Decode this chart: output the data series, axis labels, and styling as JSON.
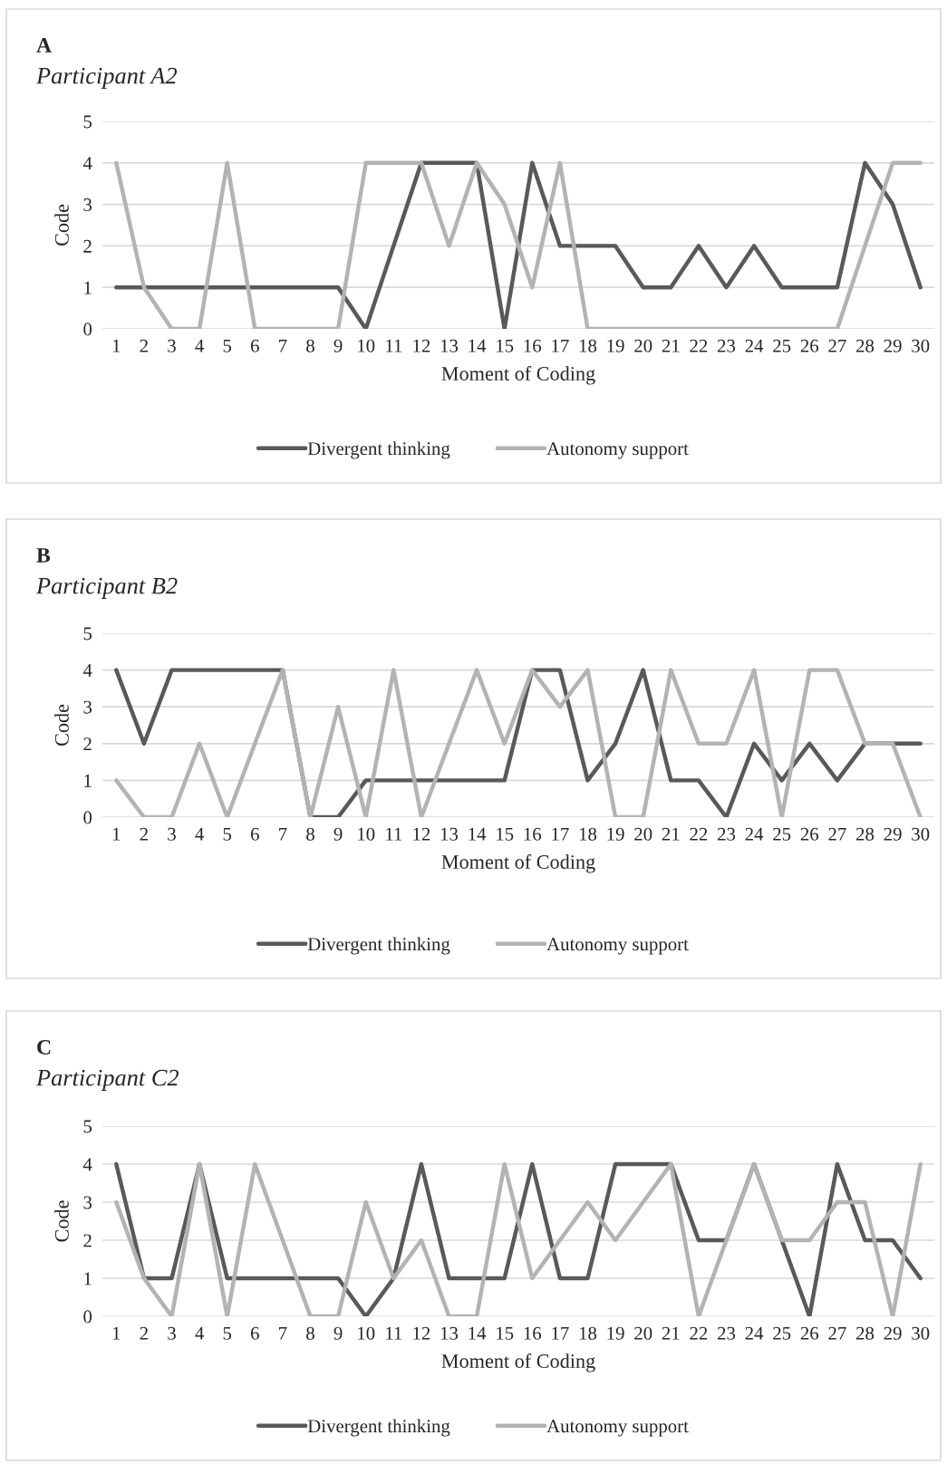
{
  "chart_data": [
    {
      "type": "line",
      "title": "A",
      "subtitle": "Participant A2",
      "xlabel": "Moment of Coding",
      "ylabel": "Code",
      "categories": [
        "1",
        "2",
        "3",
        "4",
        "5",
        "6",
        "7",
        "8",
        "9",
        "10",
        "11",
        "12",
        "13",
        "14",
        "15",
        "16",
        "17",
        "18",
        "19",
        "20",
        "21",
        "22",
        "23",
        "24",
        "25",
        "26",
        "27",
        "28",
        "29",
        "30"
      ],
      "ylim": [
        0,
        5
      ],
      "yticks": [
        0,
        1,
        2,
        3,
        4,
        5
      ],
      "grid": "y",
      "legend": "bottom",
      "marker": "none",
      "line_style": "solid",
      "series": [
        {
          "name": "Divergent thinking",
          "color": "#595959",
          "values": [
            1,
            1,
            1,
            1,
            1,
            1,
            1,
            1,
            1,
            0,
            2,
            4,
            4,
            4,
            0,
            4,
            2,
            2,
            2,
            1,
            1,
            2,
            1,
            2,
            1,
            1,
            1,
            4,
            3,
            1
          ]
        },
        {
          "name": "Autonomy support",
          "color": "#b3b3b3",
          "values": [
            4,
            1,
            0,
            0,
            4,
            0,
            0,
            0,
            0,
            4,
            4,
            4,
            2,
            4,
            3,
            1,
            4,
            0,
            0,
            0,
            0,
            0,
            0,
            0,
            0,
            0,
            0,
            2,
            4,
            4
          ]
        }
      ]
    },
    {
      "type": "line",
      "title": "B",
      "subtitle": "Participant B2",
      "xlabel": "Moment of Coding",
      "ylabel": "Code",
      "categories": [
        "1",
        "2",
        "3",
        "4",
        "5",
        "6",
        "7",
        "8",
        "9",
        "10",
        "11",
        "12",
        "13",
        "14",
        "15",
        "16",
        "17",
        "18",
        "19",
        "20",
        "21",
        "22",
        "23",
        "24",
        "25",
        "26",
        "27",
        "28",
        "29",
        "30"
      ],
      "ylim": [
        0,
        5
      ],
      "yticks": [
        0,
        1,
        2,
        3,
        4,
        5
      ],
      "grid": "y",
      "legend": "bottom",
      "marker": "none",
      "line_style": "solid",
      "series": [
        {
          "name": "Divergent thinking",
          "color": "#595959",
          "values": [
            4,
            2,
            4,
            4,
            4,
            4,
            4,
            0,
            0,
            1,
            1,
            1,
            1,
            1,
            1,
            4,
            4,
            1,
            2,
            4,
            1,
            1,
            0,
            2,
            1,
            2,
            1,
            2,
            2,
            2
          ]
        },
        {
          "name": "Autonomy support",
          "color": "#b3b3b3",
          "values": [
            1,
            0,
            0,
            2,
            0,
            2,
            4,
            0,
            3,
            0,
            4,
            0,
            2,
            4,
            2,
            4,
            3,
            4,
            0,
            0,
            4,
            2,
            2,
            4,
            0,
            4,
            4,
            2,
            2,
            0
          ]
        }
      ]
    },
    {
      "type": "line",
      "title": "C",
      "subtitle": "Participant C2",
      "xlabel": "Moment of Coding",
      "ylabel": "Code",
      "categories": [
        "1",
        "2",
        "3",
        "4",
        "5",
        "6",
        "7",
        "8",
        "9",
        "10",
        "11",
        "12",
        "13",
        "14",
        "15",
        "16",
        "17",
        "18",
        "19",
        "20",
        "21",
        "22",
        "23",
        "24",
        "25",
        "26",
        "27",
        "28",
        "29",
        "30"
      ],
      "ylim": [
        0,
        5
      ],
      "yticks": [
        0,
        1,
        2,
        3,
        4,
        5
      ],
      "grid": "y",
      "legend": "bottom",
      "marker": "none",
      "line_style": "solid",
      "series": [
        {
          "name": "Divergent thinking",
          "color": "#595959",
          "values": [
            4,
            1,
            1,
            4,
            1,
            1,
            1,
            1,
            1,
            0,
            1,
            4,
            1,
            1,
            1,
            4,
            1,
            1,
            4,
            4,
            4,
            2,
            2,
            4,
            2,
            0,
            4,
            2,
            2,
            1
          ]
        },
        {
          "name": "Autonomy support",
          "color": "#b3b3b3",
          "values": [
            3,
            1,
            0,
            4,
            0,
            4,
            2,
            0,
            0,
            3,
            1,
            2,
            0,
            0,
            4,
            1,
            2,
            3,
            2,
            3,
            4,
            0,
            2,
            4,
            2,
            2,
            3,
            3,
            0,
            4
          ]
        }
      ]
    }
  ]
}
